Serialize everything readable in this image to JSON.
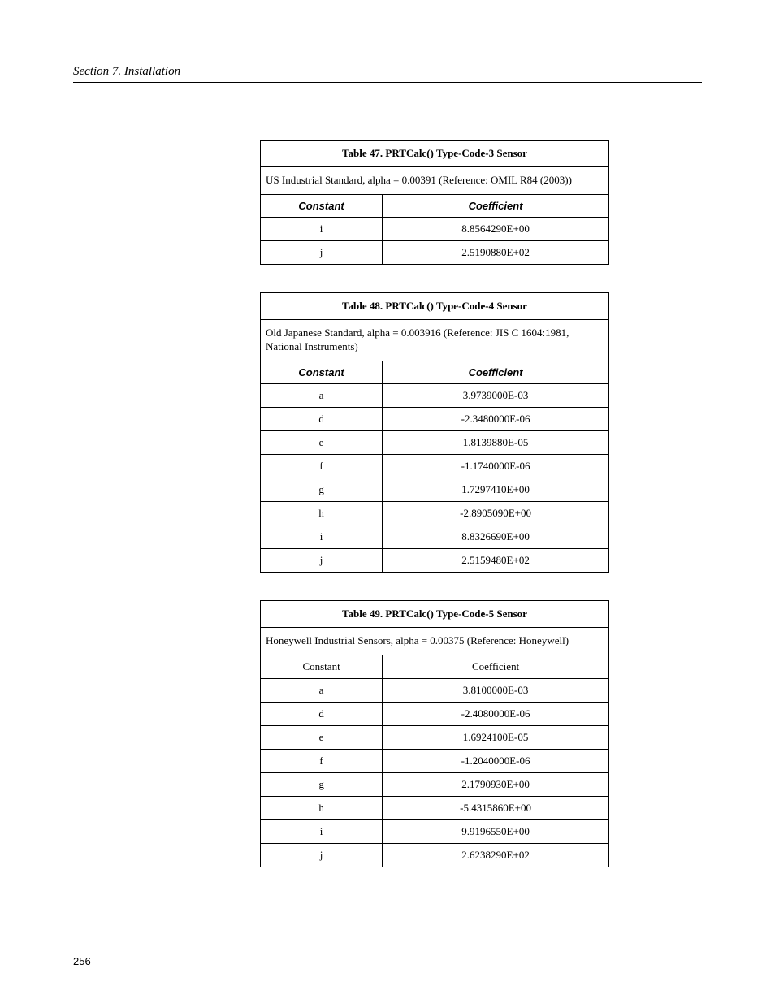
{
  "section_header": "Section 7.  Installation",
  "page_number": "256",
  "tables": [
    {
      "title": "Table 47. PRTCalc() Type-Code-3 Sensor",
      "description": "US Industrial Standard, alpha = 0.00391 (Reference: OMIL R84 (2003))",
      "header_style": "styled",
      "col_headers": [
        "Constant",
        "Coefficient"
      ],
      "rows": [
        [
          "i",
          "8.8564290E+00"
        ],
        [
          "j",
          "2.5190880E+02"
        ]
      ]
    },
    {
      "title": "Table 48. PRTCalc() Type-Code-4 Sensor",
      "description": "Old Japanese Standard, alpha = 0.003916 (Reference: JIS C 1604:1981, National Instruments)",
      "header_style": "styled",
      "col_headers": [
        "Constant",
        "Coefficient"
      ],
      "rows": [
        [
          "a",
          "3.9739000E-03"
        ],
        [
          "d",
          "-2.3480000E-06"
        ],
        [
          "e",
          "1.8139880E-05"
        ],
        [
          "f",
          "-1.1740000E-06"
        ],
        [
          "g",
          "1.7297410E+00"
        ],
        [
          "h",
          "-2.8905090E+00"
        ],
        [
          "i",
          "8.8326690E+00"
        ],
        [
          "j",
          "2.5159480E+02"
        ]
      ]
    },
    {
      "title": "Table 49. PRTCalc() Type-Code-5 Sensor",
      "description": "Honeywell Industrial Sensors, alpha = 0.00375 (Reference: Honeywell)",
      "header_style": "plain",
      "col_headers": [
        "Constant",
        "Coefficient"
      ],
      "rows": [
        [
          "a",
          "3.8100000E-03"
        ],
        [
          "d",
          "-2.4080000E-06"
        ],
        [
          "e",
          "1.6924100E-05"
        ],
        [
          "f",
          "-1.2040000E-06"
        ],
        [
          "g",
          "2.1790930E+00"
        ],
        [
          "h",
          "-5.4315860E+00"
        ],
        [
          "i",
          "9.9196550E+00"
        ],
        [
          "j",
          "2.6238290E+02"
        ]
      ]
    }
  ]
}
